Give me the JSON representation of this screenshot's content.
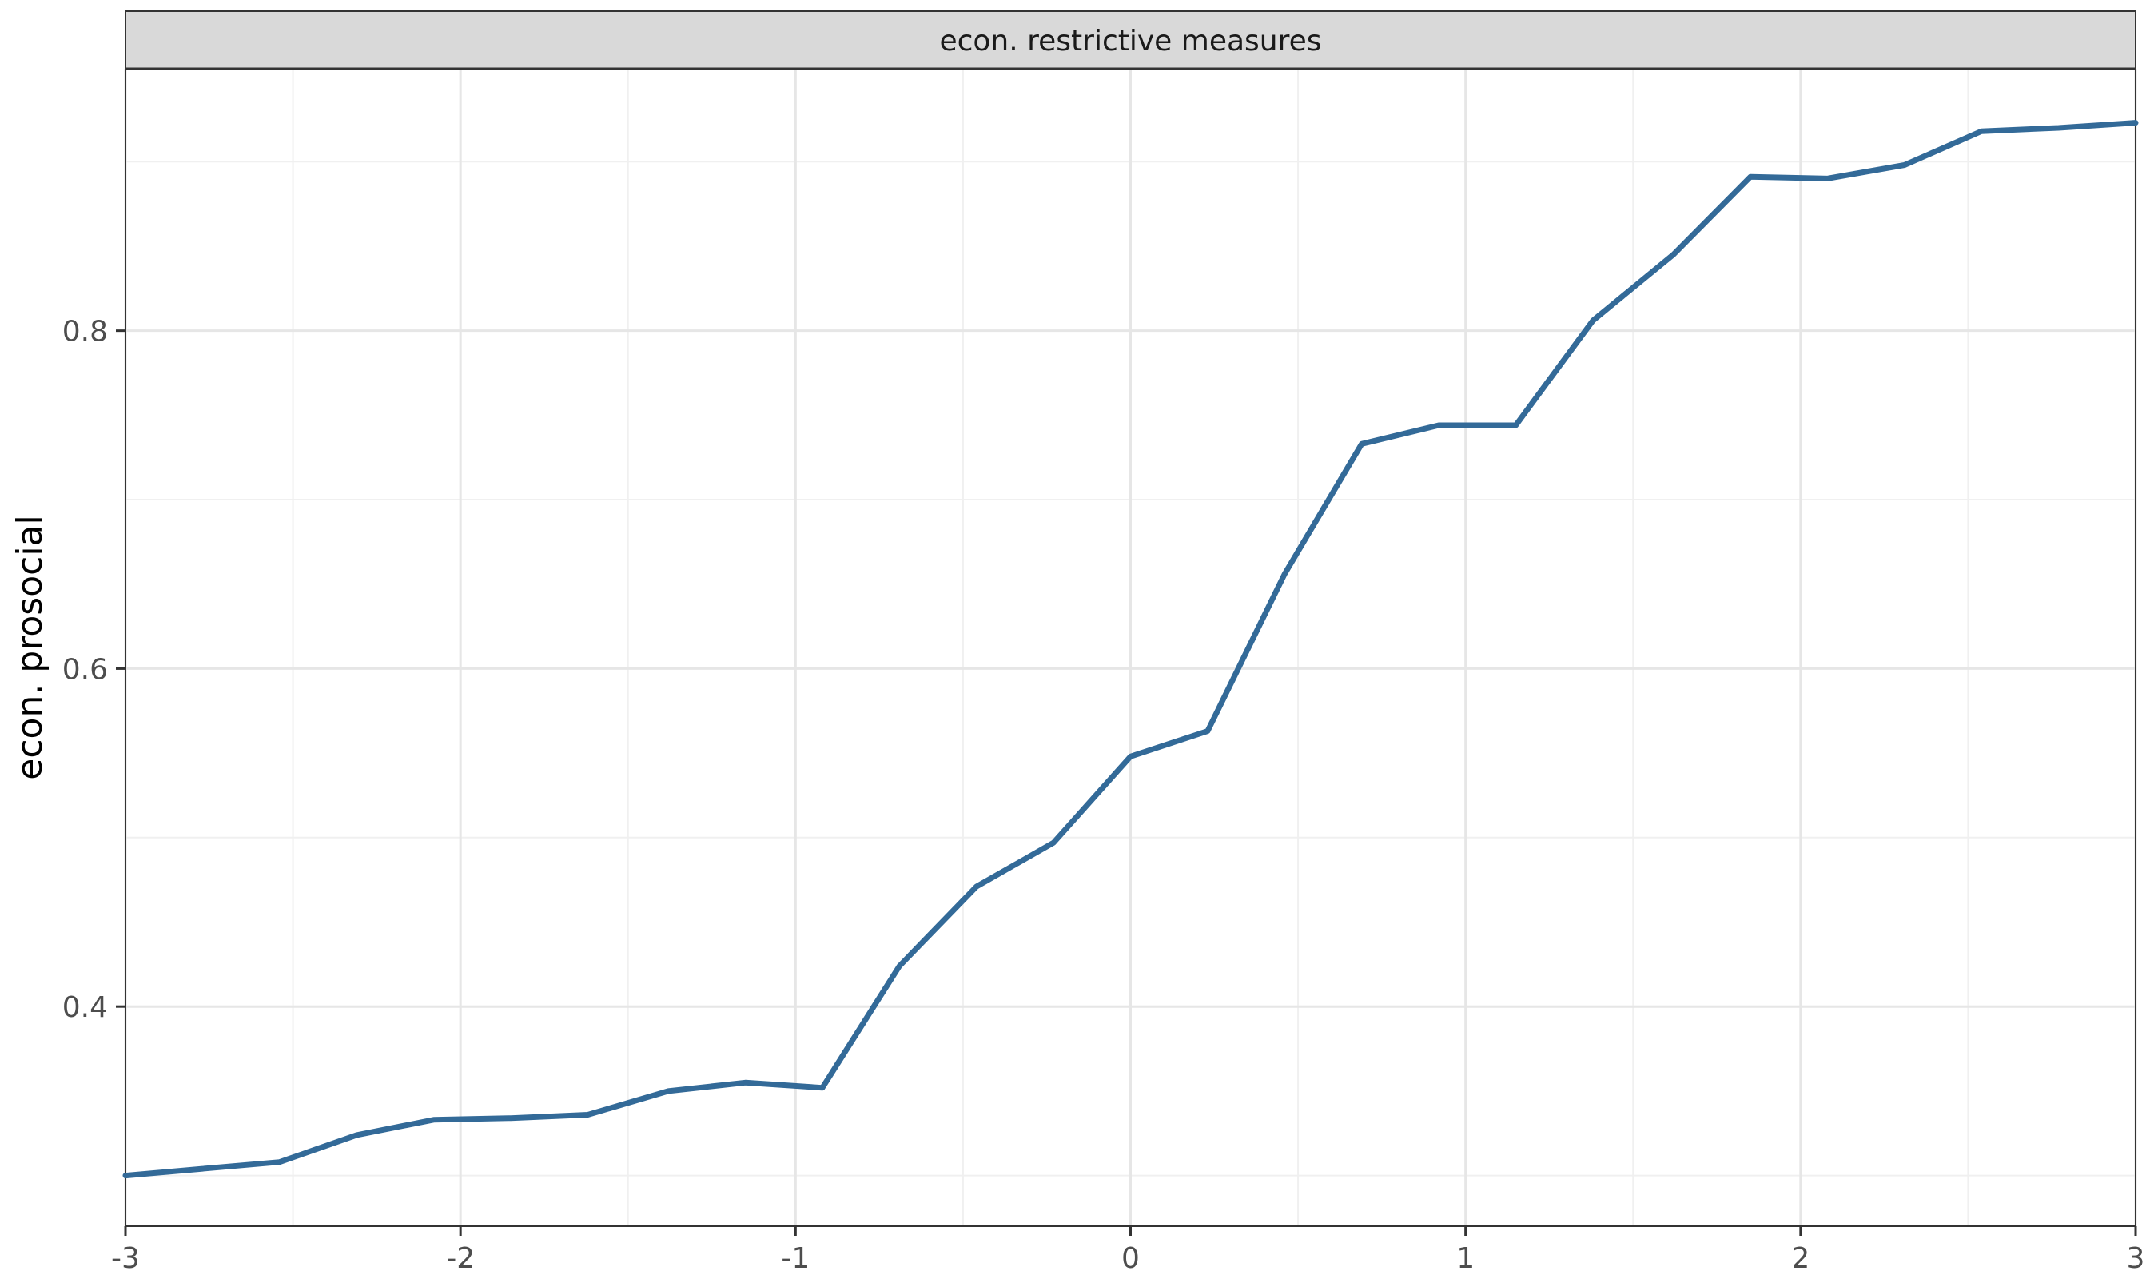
{
  "chart_data": {
    "type": "line",
    "facet_label": "econ. restrictive measures",
    "title": "",
    "xlabel": "",
    "ylabel": "econ. prosocial",
    "xlim": [
      -3,
      3
    ],
    "ylim": [
      0.27,
      0.955
    ],
    "x_ticks": [
      -3,
      -2,
      -1,
      0,
      1,
      2,
      3
    ],
    "x_tick_labels": [
      "-3",
      "-2",
      "-1",
      "0",
      "1",
      "2",
      "3"
    ],
    "y_ticks": [
      0.4,
      0.6,
      0.8
    ],
    "y_tick_labels": [
      "0.4",
      "0.6",
      "0.8"
    ],
    "y_minor_ticks": [
      0.3,
      0.5,
      0.7,
      0.9
    ],
    "x_minor_ticks": [
      -2.5,
      -1.5,
      -0.5,
      0.5,
      1.5,
      2.5
    ],
    "grid": true,
    "line_color": "#336a98",
    "series": [
      {
        "x": [
          -3.0,
          -2.77,
          -2.54,
          -2.31,
          -2.08,
          -1.85,
          -1.62,
          -1.38,
          -1.15,
          -0.92,
          -0.69,
          -0.46,
          -0.23,
          0.0,
          0.23,
          0.46,
          0.69,
          0.92,
          1.15,
          1.38,
          1.62,
          1.85,
          2.08,
          2.31,
          2.54,
          2.77,
          3.0
        ],
        "y": [
          0.3,
          0.304,
          0.308,
          0.324,
          0.333,
          0.334,
          0.336,
          0.35,
          0.355,
          0.352,
          0.424,
          0.471,
          0.497,
          0.548,
          0.563,
          0.656,
          0.733,
          0.744,
          0.744,
          0.806,
          0.845,
          0.891,
          0.89,
          0.898,
          0.918,
          0.92,
          0.923
        ]
      }
    ]
  }
}
